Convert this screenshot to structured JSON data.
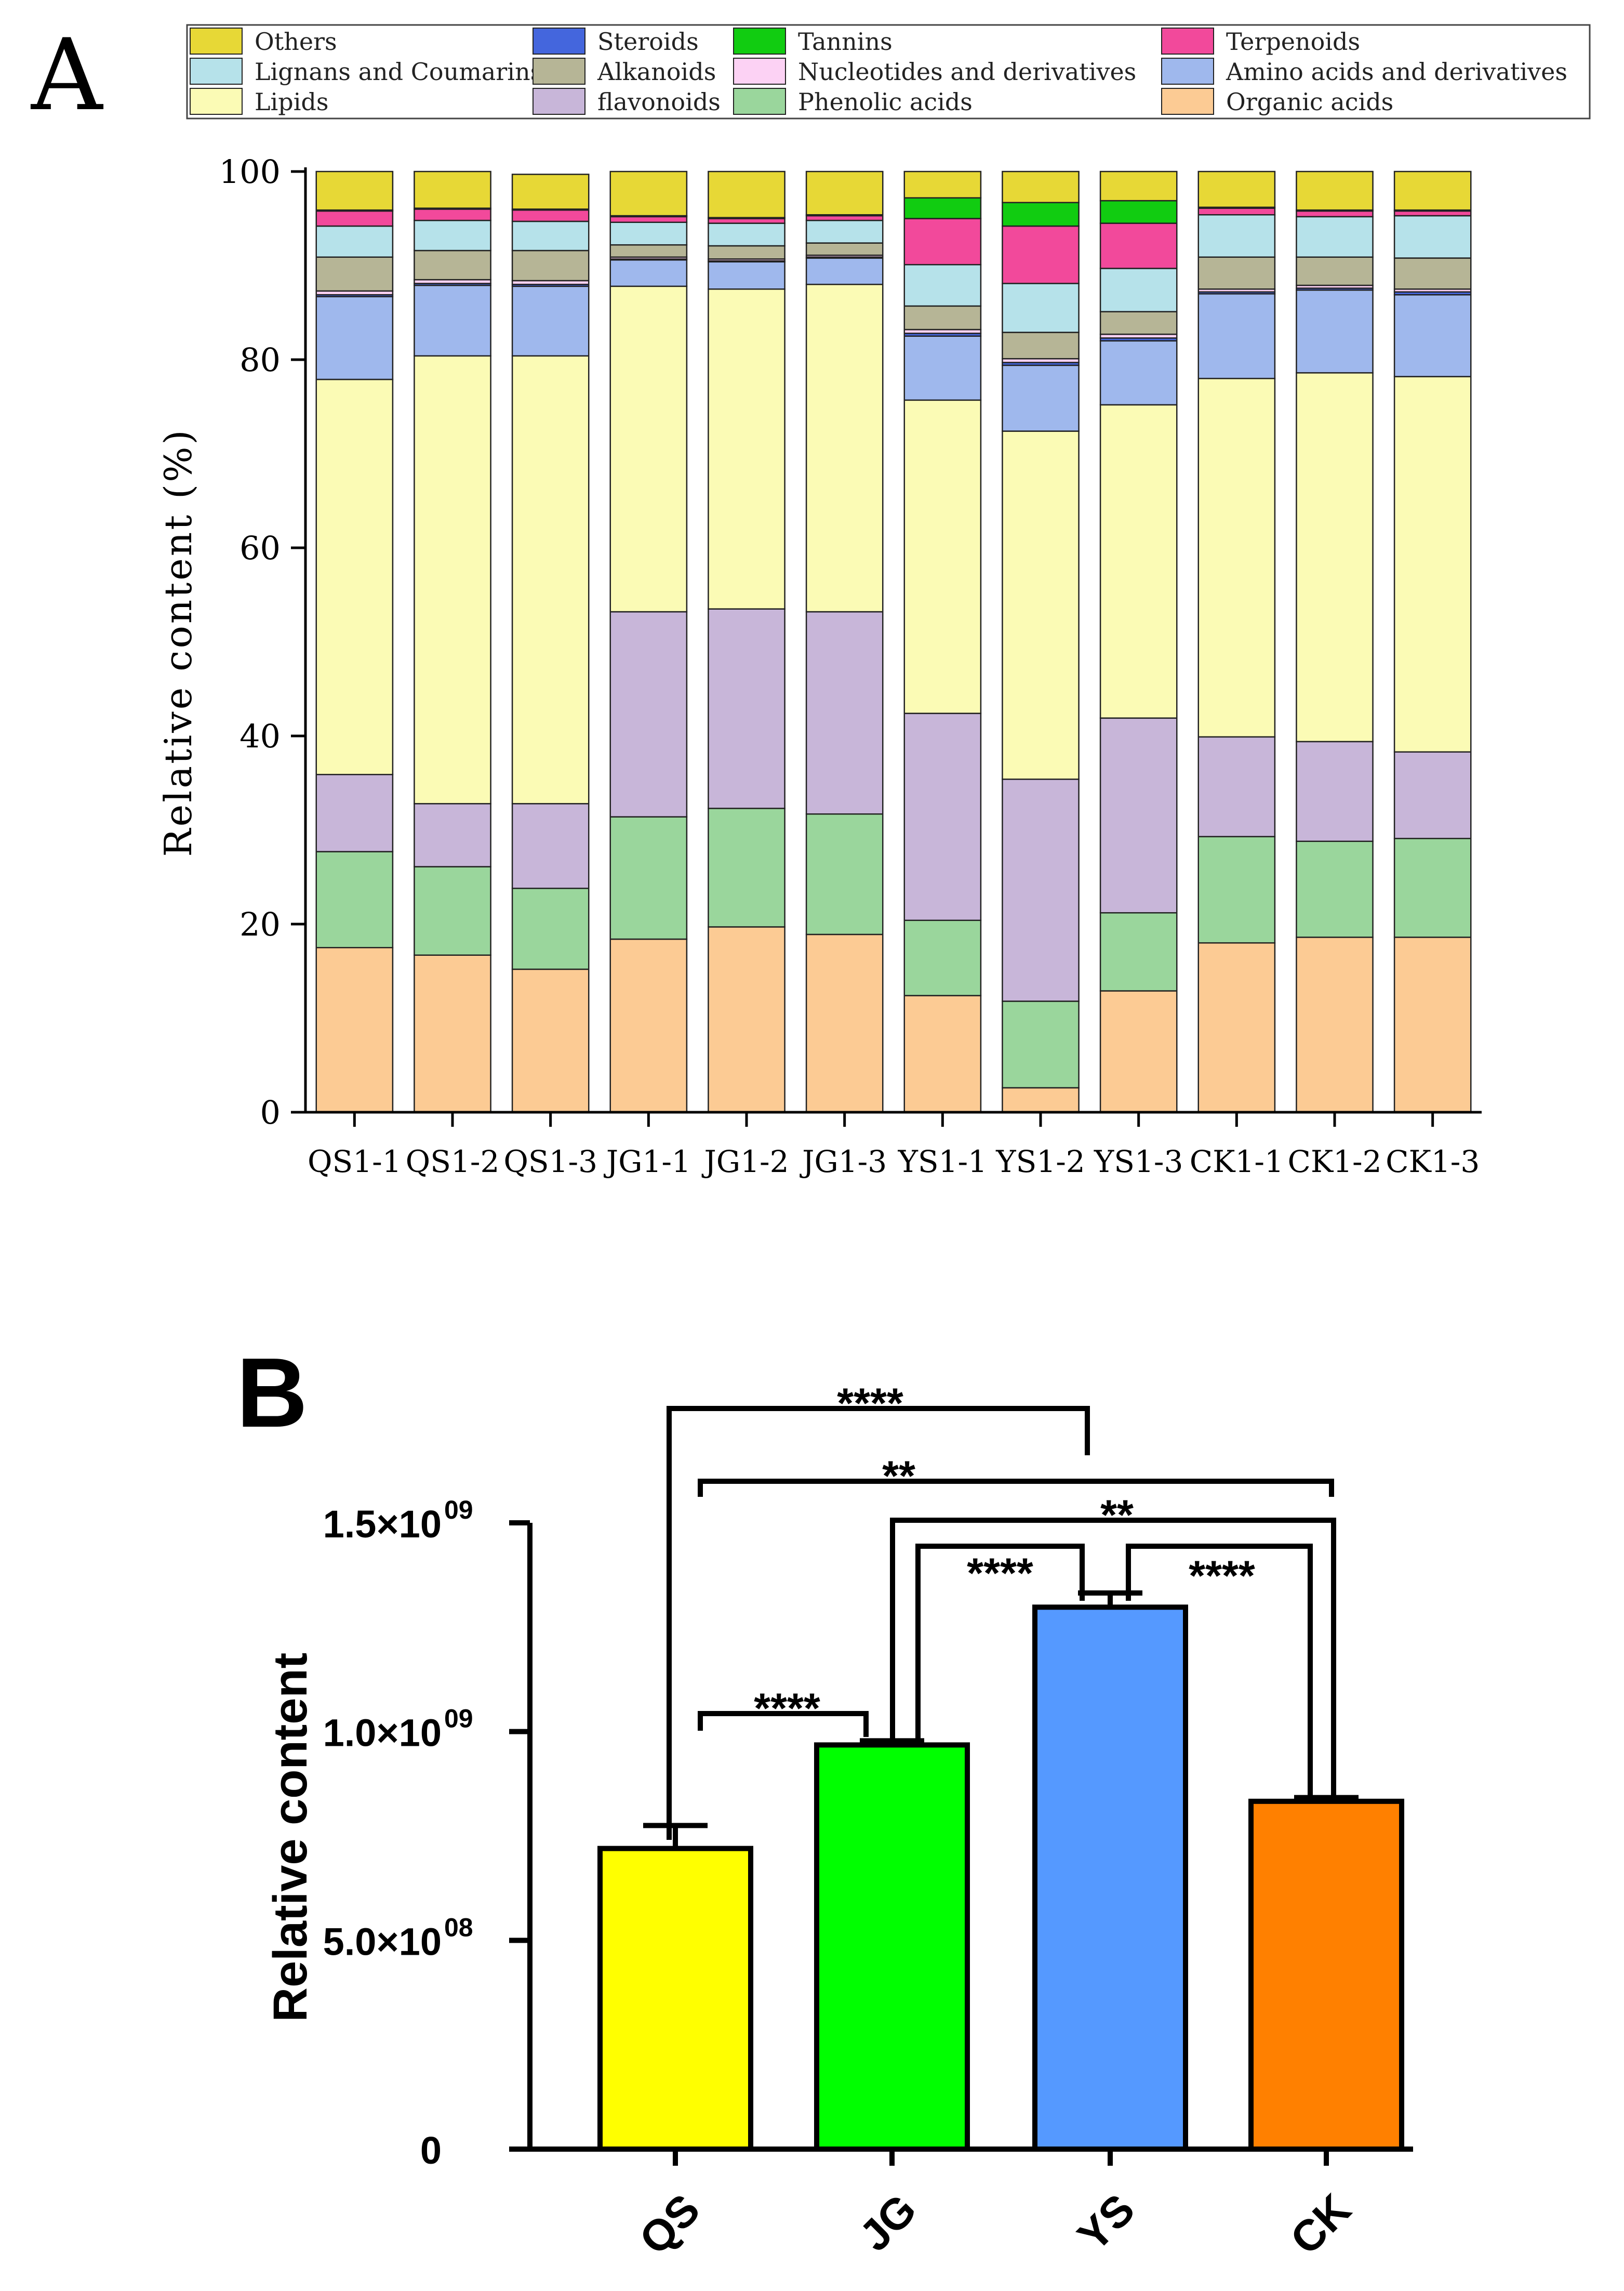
{
  "chart_data": [
    {
      "type": "bar",
      "stacked": true,
      "panel_label": "A",
      "title": "",
      "xlabel": "",
      "ylabel": "Relative content (%)",
      "ylim": [
        0,
        100
      ],
      "yticks": [
        0,
        20,
        40,
        60,
        80,
        100
      ],
      "grid": false,
      "legend_position": "top",
      "categories": [
        "QS1-1",
        "QS1-2",
        "QS1-3",
        "JG1-1",
        "JG1-2",
        "JG1-3",
        "YS1-1",
        "YS1-2",
        "YS1-3",
        "CK1-1",
        "CK1-2",
        "CK1-3"
      ],
      "legend_order": [
        "Others",
        "Steroids",
        "Tannins",
        "Terpenoids",
        "Lignans and Coumarins",
        "Alkanoids",
        "Nucleotides and derivatives",
        "Amino acids and derivatives",
        "Lipids",
        "flavonoids",
        "Phenolic acids",
        "Organic acids"
      ],
      "series": [
        {
          "name": "Organic acids",
          "color": "#FCCB94",
          "values": [
            17.5,
            16.7,
            15.2,
            18.4,
            19.7,
            18.9,
            12.4,
            2.6,
            12.9,
            18.0,
            18.6,
            18.6
          ]
        },
        {
          "name": "Phenolic acids",
          "color": "#9AD69C",
          "values": [
            10.2,
            9.4,
            8.6,
            13.0,
            12.6,
            12.8,
            8.0,
            9.2,
            8.3,
            11.3,
            10.2,
            10.5
          ]
        },
        {
          "name": "flavonoids",
          "color": "#C8B6D9",
          "values": [
            8.2,
            6.7,
            9.0,
            21.8,
            21.2,
            21.5,
            22.0,
            23.6,
            20.7,
            10.6,
            10.6,
            9.2
          ]
        },
        {
          "name": "Lipids",
          "color": "#FBFBB5",
          "values": [
            42.0,
            47.6,
            47.6,
            34.6,
            34.0,
            34.8,
            33.3,
            37.0,
            33.3,
            38.1,
            39.2,
            39.9
          ]
        },
        {
          "name": "Amino acids and derivatives",
          "color": "#9FB8ED",
          "values": [
            8.8,
            7.5,
            7.4,
            2.8,
            2.9,
            2.8,
            6.8,
            7.0,
            6.8,
            9.0,
            8.8,
            8.7
          ]
        },
        {
          "name": "Steroids",
          "color": "#4466DD",
          "values": [
            0.2,
            0.2,
            0.2,
            0.1,
            0.1,
            0.1,
            0.3,
            0.3,
            0.3,
            0.2,
            0.2,
            0.3
          ]
        },
        {
          "name": "Nucleotides and derivatives",
          "color": "#FCD2F4",
          "values": [
            0.4,
            0.4,
            0.4,
            0.2,
            0.2,
            0.2,
            0.4,
            0.4,
            0.4,
            0.3,
            0.3,
            0.3
          ]
        },
        {
          "name": "Alkanoids",
          "color": "#B6B596",
          "values": [
            3.6,
            3.1,
            3.2,
            1.3,
            1.4,
            1.3,
            2.5,
            2.8,
            2.4,
            3.4,
            3.0,
            3.3
          ]
        },
        {
          "name": "Lignans and Coumarins",
          "color": "#B6E2EA",
          "values": [
            3.3,
            3.2,
            3.1,
            2.4,
            2.4,
            2.4,
            4.4,
            5.2,
            4.6,
            4.5,
            4.3,
            4.5
          ]
        },
        {
          "name": "Terpenoids",
          "color": "#F2499B",
          "values": [
            1.6,
            1.2,
            1.2,
            0.6,
            0.5,
            0.5,
            4.9,
            6.1,
            4.8,
            0.7,
            0.6,
            0.5
          ]
        },
        {
          "name": "Tannins",
          "color": "#11CC11",
          "values": [
            0.1,
            0.1,
            0.1,
            0.1,
            0.1,
            0.1,
            2.2,
            2.5,
            2.4,
            0.1,
            0.1,
            0.1
          ]
        },
        {
          "name": "Others",
          "color": "#E7D836",
          "values": [
            4.1,
            3.9,
            3.7,
            4.7,
            4.9,
            4.6,
            2.8,
            3.3,
            3.1,
            3.8,
            4.1,
            4.1
          ]
        }
      ]
    },
    {
      "type": "bar",
      "panel_label": "B",
      "title": "",
      "xlabel": "",
      "ylabel": "Relative content",
      "ylim": [
        0,
        1500000000
      ],
      "ytick_values": [
        0,
        500000000,
        1000000000,
        1500000000
      ],
      "ytick_labels": [
        {
          "mantissa": "0",
          "exponent": ""
        },
        {
          "mantissa": "5.0×10",
          "exponent": "08"
        },
        {
          "mantissa": "1.0×10",
          "exponent": "09"
        },
        {
          "mantissa": "1.5×10",
          "exponent": "09"
        }
      ],
      "grid": false,
      "categories": [
        "QS",
        "JG",
        "YS",
        "CK"
      ],
      "values": [
        720000000,
        968000000,
        1298000000,
        833000000
      ],
      "errors": [
        55000000,
        10000000,
        34000000,
        9000000
      ],
      "colors": [
        "#FFFF00",
        "#00FF00",
        "#5599FF",
        "#FF8000"
      ],
      "significance": [
        {
          "from": "QS",
          "to": "YS",
          "label": "****"
        },
        {
          "from": "QS",
          "to": "CK",
          "label": "**"
        },
        {
          "from": "JG",
          "to": "CK",
          "label": "**"
        },
        {
          "from": "JG",
          "to": "YS",
          "label": "****"
        },
        {
          "from": "YS",
          "to": "CK",
          "label": "****"
        },
        {
          "from": "QS",
          "to": "JG",
          "label": "****"
        }
      ]
    }
  ]
}
